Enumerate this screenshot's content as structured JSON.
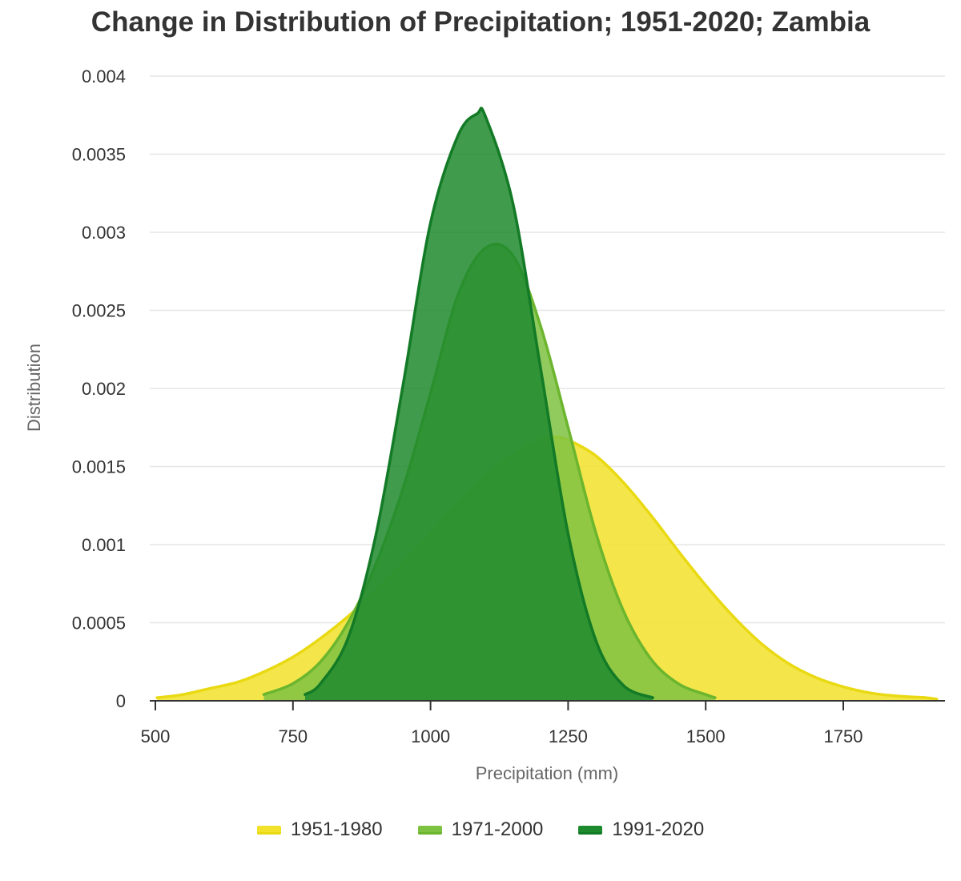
{
  "chart_data": {
    "type": "area",
    "title": "Change in Distribution of Precipitation; 1951-2020; Zambia",
    "xlabel": "Precipitation (mm)",
    "ylabel": "Distribution",
    "xlim": [
      500,
      1925
    ],
    "ylim": [
      0,
      0.004
    ],
    "x_ticks": [
      500,
      750,
      1000,
      1250,
      1500,
      1750
    ],
    "x_tick_labels": [
      "500",
      "750",
      "1000",
      "1250",
      "1500",
      "1750"
    ],
    "y_ticks": [
      0,
      0.0005,
      0.001,
      0.0015,
      0.002,
      0.0025,
      0.003,
      0.0035,
      0.004
    ],
    "y_tick_labels": [
      "0",
      "0.0005",
      "0.001",
      "0.0015",
      "0.002",
      "0.0025",
      "0.003",
      "0.0035",
      "0.004"
    ],
    "grid": true,
    "legend_position": "bottom-center",
    "series": [
      {
        "name": "1951-1980",
        "color": "#f2e22a",
        "line_color": "#e9d912",
        "x": [
          503,
          550,
          600,
          650,
          700,
          750,
          800,
          850,
          900,
          950,
          1000,
          1050,
          1100,
          1150,
          1200,
          1225,
          1250,
          1300,
          1350,
          1400,
          1450,
          1500,
          1550,
          1600,
          1650,
          1700,
          1750,
          1800,
          1850,
          1900,
          1920
        ],
        "y": [
          2e-05,
          4e-05,
          8e-05,
          0.00012,
          0.00019,
          0.00028,
          0.0004,
          0.00054,
          0.0007,
          0.00088,
          0.00107,
          0.00126,
          0.00143,
          0.00157,
          0.00167,
          0.00169,
          0.00167,
          0.00157,
          0.0014,
          0.00119,
          0.00096,
          0.00074,
          0.00054,
          0.00037,
          0.00024,
          0.00015,
          9e-05,
          5e-05,
          3e-05,
          2e-05,
          1e-05
        ]
      },
      {
        "name": "1971-2000",
        "color": "#7ec242",
        "line_color": "#6cb52e",
        "x": [
          697,
          750,
          800,
          850,
          900,
          950,
          1000,
          1050,
          1100,
          1150,
          1200,
          1250,
          1300,
          1350,
          1400,
          1450,
          1500,
          1517
        ],
        "y": [
          4e-05,
          0.00011,
          0.00025,
          0.0005,
          0.00087,
          0.00136,
          0.00197,
          0.0026,
          0.0029,
          0.00285,
          0.0024,
          0.00175,
          0.00108,
          0.00058,
          0.00027,
          0.00011,
          4e-05,
          2e-05
        ]
      },
      {
        "name": "1991-2020",
        "color": "#1e8a2e",
        "line_color": "#137a26",
        "x": [
          772,
          800,
          850,
          900,
          950,
          1000,
          1050,
          1085,
          1100,
          1150,
          1200,
          1250,
          1300,
          1350,
          1404
        ],
        "y": [
          4e-05,
          0.00011,
          0.0004,
          0.00105,
          0.00202,
          0.00306,
          0.00362,
          0.00376,
          0.00374,
          0.00318,
          0.00213,
          0.00107,
          0.00039,
          0.0001,
          2e-05
        ]
      }
    ]
  }
}
